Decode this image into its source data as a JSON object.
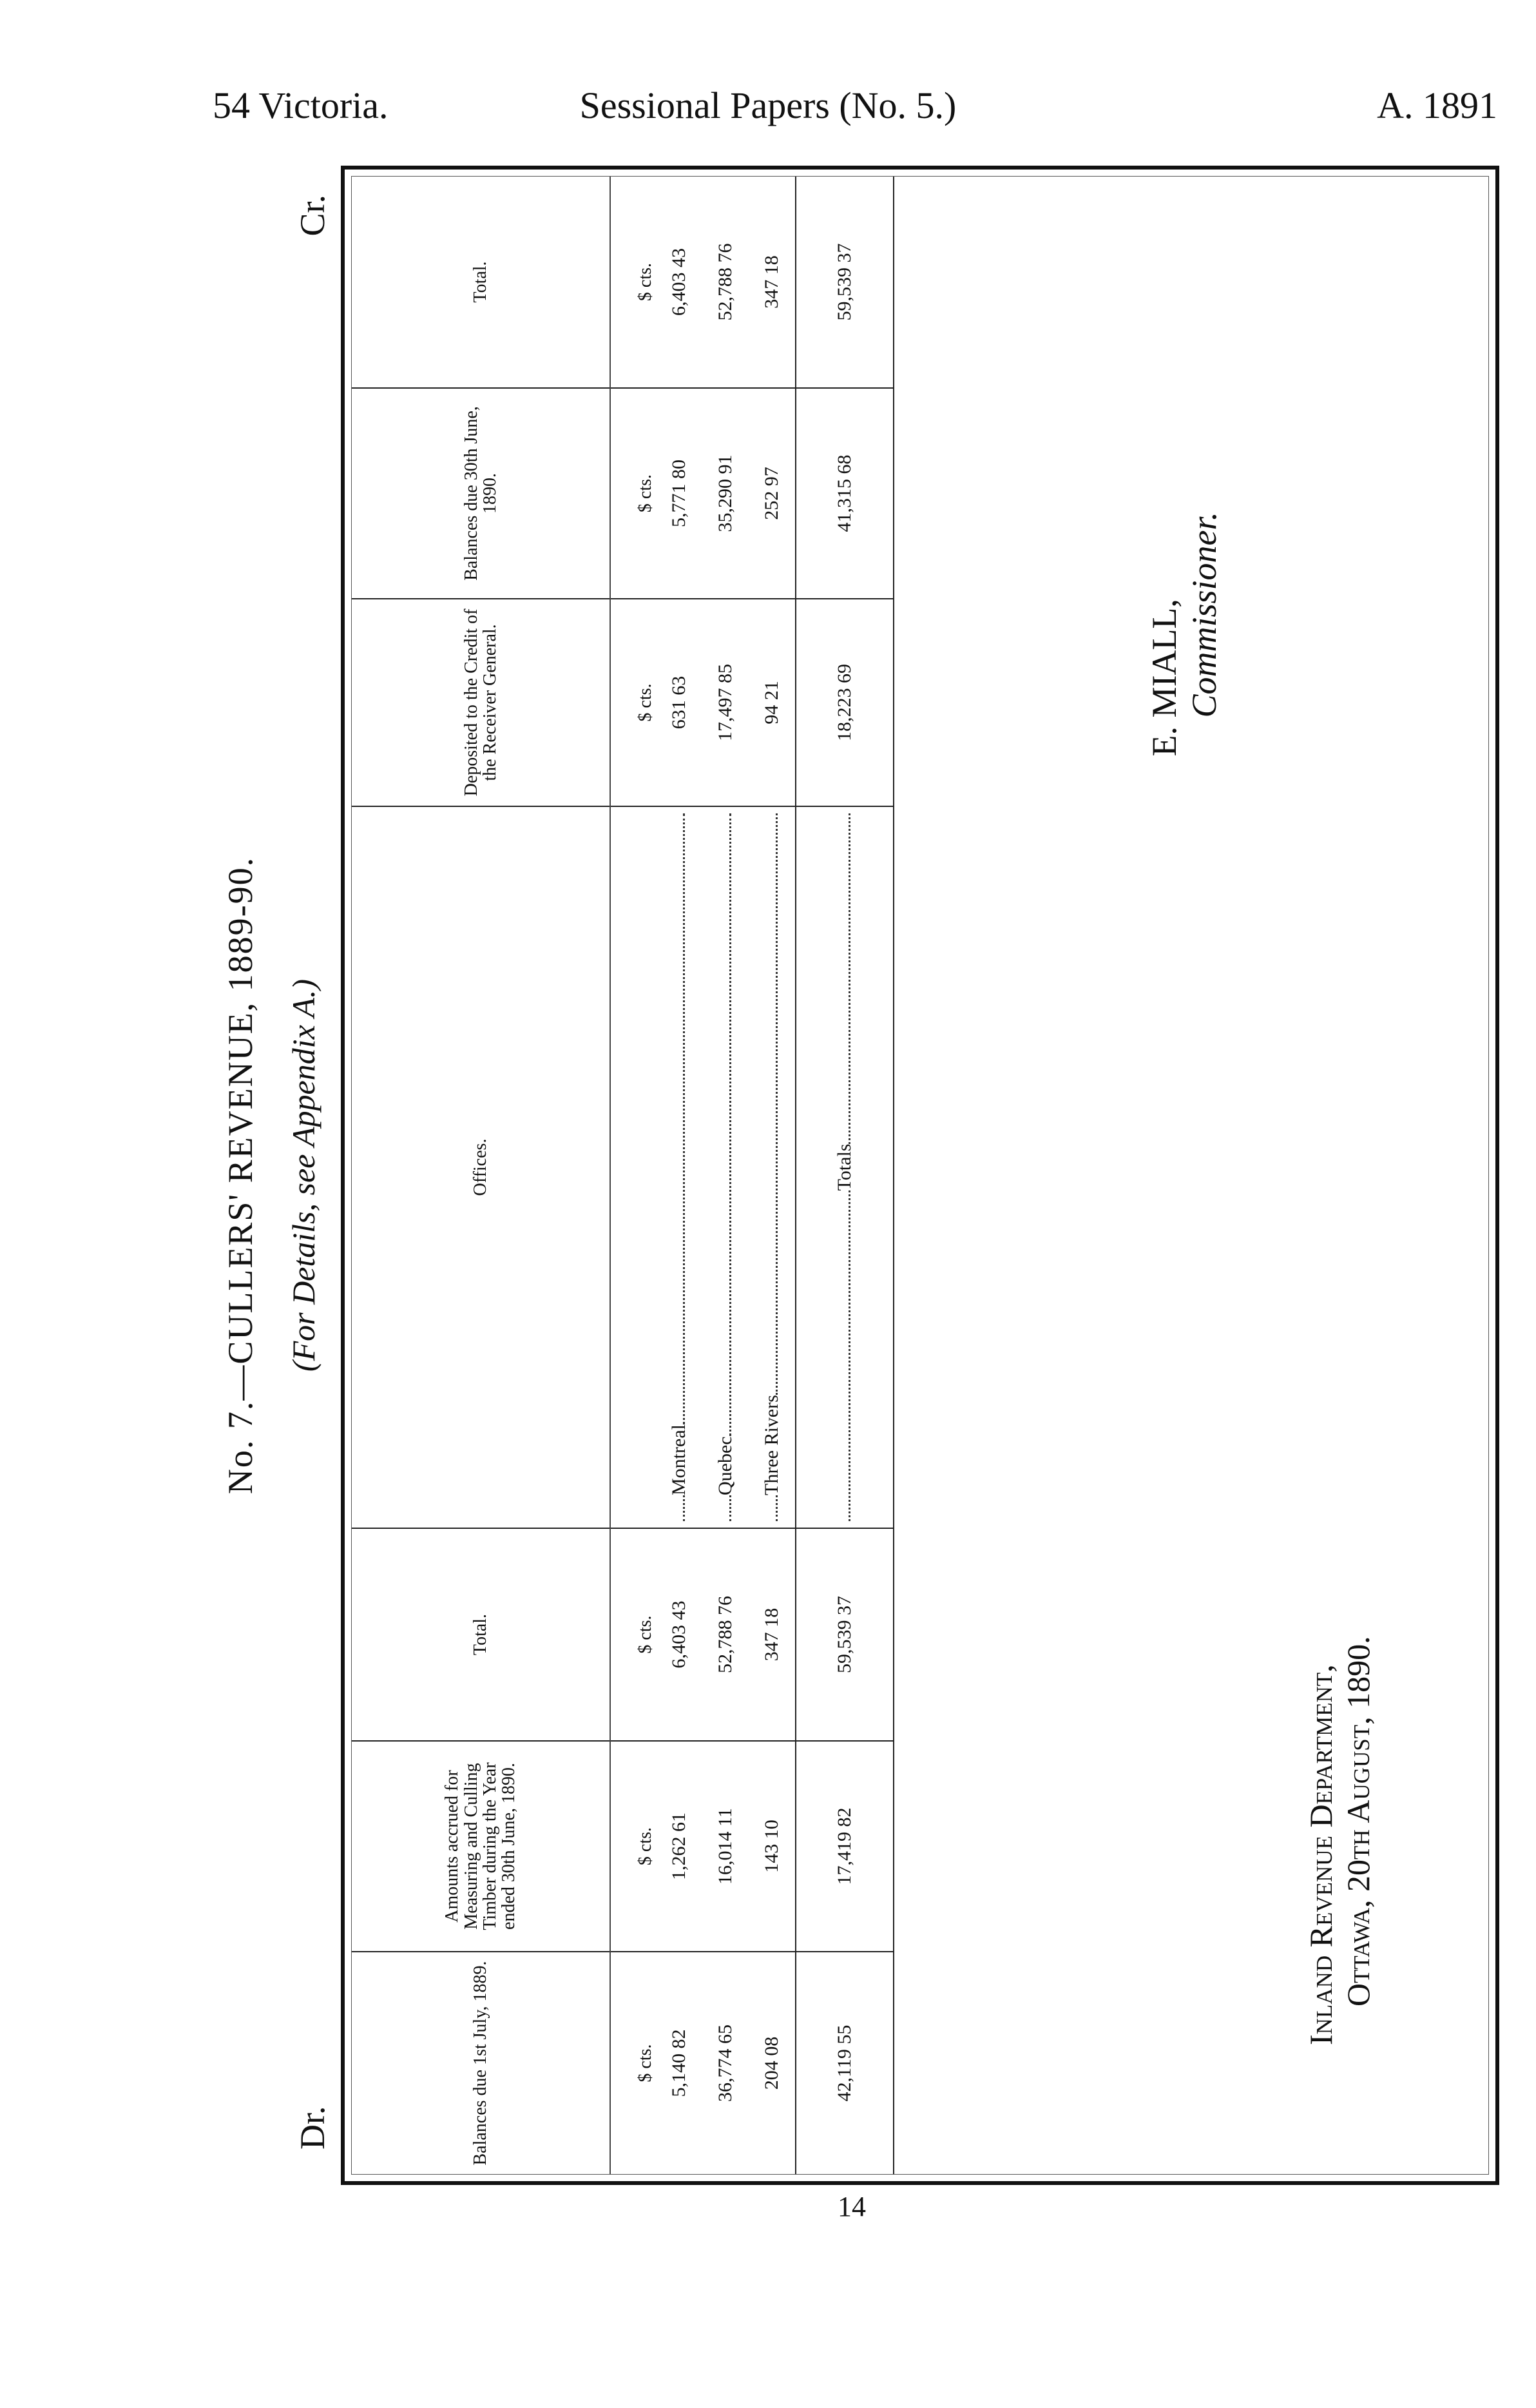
{
  "running_head": {
    "left": "54 Victoria.",
    "center": "Sessional Papers (No. 5.)",
    "right": "A. 1891"
  },
  "title": "No. 7.—CULLERS' REVENUE, 1889-90.",
  "subtitle": "(For Details, see Appendix A.)",
  "dr": "Dr.",
  "cr": "Cr.",
  "table": {
    "headers": [
      "Balances due 1st July, 1889.",
      "Amounts accrued for Measuring and Culling Timber during the Year ended 30th June, 1890.",
      "Total.",
      "Offices.",
      "Deposited to the Credit of the Receiver General.",
      "Balances due 30th June, 1890.",
      "Total."
    ],
    "unit": "$ cts.",
    "rows": [
      {
        "office": "Montreal",
        "bal_1889": "5,140 82",
        "accrued": "1,262 61",
        "total_dr": "6,403 43",
        "deposited": "631 63",
        "bal_1890": "5,771 80",
        "total_cr": "6,403 43"
      },
      {
        "office": "Quebec",
        "bal_1889": "36,774 65",
        "accrued": "16,014 11",
        "total_dr": "52,788 76",
        "deposited": "17,497 85",
        "bal_1890": "35,290 91",
        "total_cr": "52,788 76"
      },
      {
        "office": "Three Rivers",
        "bal_1889": "204 08",
        "accrued": "143 10",
        "total_dr": "347 18",
        "deposited": "94 21",
        "bal_1890": "252 97",
        "total_cr": "347 18"
      }
    ],
    "totals": {
      "label": "Totals",
      "bal_1889": "42,119 55",
      "accrued": "17,419 82",
      "total_dr": "59,539 37",
      "deposited": "18,223 69",
      "bal_1890": "41,315 68",
      "total_cr": "59,539 37"
    }
  },
  "signature": {
    "name": "E. MIALL,",
    "title": "Commissioner."
  },
  "department": {
    "line1": "Inland Revenue Department,",
    "line2": "Ottawa, 20th August, 1890."
  },
  "page_number": "14"
}
